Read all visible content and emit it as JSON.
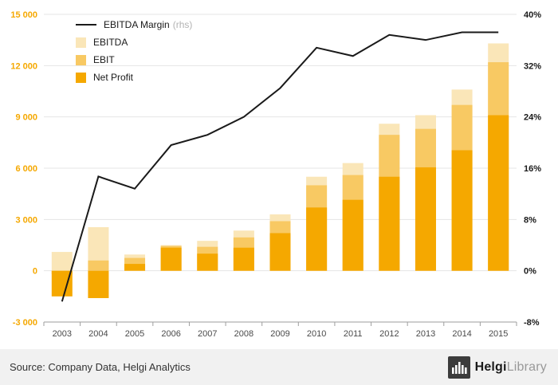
{
  "chart_data": {
    "type": "bar",
    "title": "",
    "categories": [
      "2003",
      "2004",
      "2005",
      "2006",
      "2007",
      "2008",
      "2009",
      "2010",
      "2011",
      "2012",
      "2013",
      "2014",
      "2015"
    ],
    "series": [
      {
        "name": "EBITDA",
        "type": "bar",
        "color": "#FAE6B8",
        "values": [
          1100,
          2550,
          950,
          1500,
          1750,
          2350,
          3300,
          5500,
          6300,
          8600,
          9100,
          10600,
          13300
        ]
      },
      {
        "name": "EBIT",
        "type": "bar",
        "color": "#F8C963",
        "values": [
          -200,
          600,
          750,
          1450,
          1400,
          1950,
          2900,
          5000,
          5600,
          7950,
          8300,
          9700,
          12200
        ]
      },
      {
        "name": "Net Profit",
        "type": "bar",
        "color": "#F5A800",
        "values": [
          -1500,
          -1600,
          400,
          1350,
          1000,
          1350,
          2200,
          3700,
          4150,
          5500,
          6050,
          7050,
          9100
        ]
      },
      {
        "name": "EBITDA Margin",
        "type": "line",
        "axis": "rhs",
        "color": "#1a1a1a",
        "values": [
          -4.8,
          14.7,
          12.8,
          19.6,
          21.2,
          24.0,
          28.5,
          34.8,
          33.5,
          36.8,
          36.0,
          37.2,
          37.2
        ]
      }
    ],
    "left_axis": {
      "min": -3000,
      "max": 15000,
      "step": 3000,
      "color": "#F5A800",
      "labels": [
        "-3 000",
        "0",
        "3 000",
        "6 000",
        "9 000",
        "12 000",
        "15 000"
      ]
    },
    "right_axis": {
      "min": -8,
      "max": 40,
      "step": 8,
      "color": "#1a1a1a",
      "labels": [
        "-8%",
        "0%",
        "8%",
        "16%",
        "24%",
        "32%",
        "40%"
      ]
    },
    "grid": true,
    "legend_position": "top-left",
    "legend": [
      {
        "label": "EBITDA Margin",
        "suffix": "(rhs)",
        "marker": "line",
        "color": "#1a1a1a"
      },
      {
        "label": "EBITDA",
        "suffix": "",
        "marker": "square",
        "color": "#FAE6B8"
      },
      {
        "label": "EBIT",
        "suffix": "",
        "marker": "square",
        "color": "#F8C963"
      },
      {
        "label": "Net Profit",
        "suffix": "",
        "marker": "square",
        "color": "#F5A800"
      }
    ]
  },
  "footer": {
    "source": "Source: Company Data, Helgi Analytics",
    "brand_helgi": "Helgi",
    "brand_library": "Library"
  }
}
